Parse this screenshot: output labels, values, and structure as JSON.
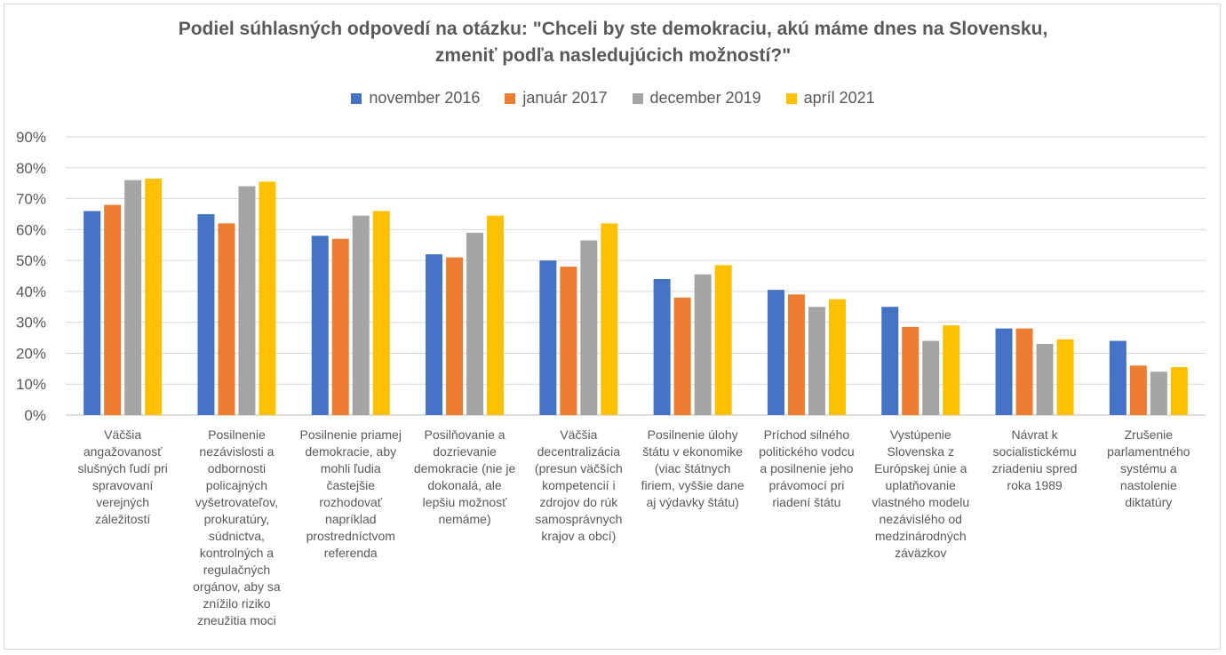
{
  "chart_data": {
    "type": "bar",
    "title_line1": "Podiel súhlasných odpovedí na otázku: \"Chceli by ste demokraciu, akú máme dnes na Slovensku,",
    "title_line2": "zmeniť podľa nasledujúcich možností?\"",
    "ylim": [
      0,
      90
    ],
    "yticks": [
      "0%",
      "10%",
      "20%",
      "30%",
      "40%",
      "50%",
      "60%",
      "70%",
      "80%",
      "90%"
    ],
    "legend_position": "top",
    "grid": true,
    "categories": [
      [
        "Väčšia",
        "angažovanosť",
        "slušných ľudí pri",
        "spravovaní",
        "verejných",
        "záležitostí"
      ],
      [
        "Posilnenie",
        "nezávislosti a",
        "odbornosti",
        "policajných",
        "vyšetrovateľov,",
        "prokuratúry,",
        "súdnictva,",
        "kontrolných a",
        "regulačných",
        "orgánov, aby sa",
        "znížilo riziko",
        "zneužitia moci"
      ],
      [
        "Posilnenie priamej",
        "demokracie, aby",
        "mohli ľudia",
        "častejšie",
        "rozhodovať",
        "napríklad",
        "prostredníctvom",
        "referenda"
      ],
      [
        "Posilňovanie a",
        "dozrievanie",
        "demokracie (nie je",
        "dokonalá, ale",
        "lepšiu možnosť",
        "nemáme)"
      ],
      [
        "Väčšia",
        "decentralizácia",
        "(presun väčších",
        "kompetencií i",
        "zdrojov do rúk",
        "samosprávnych",
        "krajov a obcí)"
      ],
      [
        "Posilnenie úlohy",
        "štátu v ekonomike",
        "(viac štátnych",
        "firiem, vyššie dane",
        "aj výdavky štátu)"
      ],
      [
        "Príchod silného",
        "politického vodcu",
        "a posilnenie jeho",
        "právomocí pri",
        "riadení štátu"
      ],
      [
        "Vystúpenie",
        "Slovenska z",
        "Európskej únie a",
        "uplatňovanie",
        "vlastného modelu",
        "nezávislého od",
        "medzinárodných",
        "záväzkov"
      ],
      [
        "Návrat k",
        "socialistickému",
        "zriadeniu spred",
        "roka 1989"
      ],
      [
        "Zrušenie",
        "parlamentného",
        "systému a",
        "nastolenie",
        "diktatúry"
      ]
    ],
    "series": [
      {
        "name": "november 2016",
        "color": "#4472c4",
        "values": [
          66,
          65,
          58,
          52,
          50,
          44,
          40.5,
          35,
          28,
          24
        ]
      },
      {
        "name": "január 2017",
        "color": "#ed7d31",
        "values": [
          68,
          62,
          57,
          51,
          48,
          38,
          39,
          28.5,
          28,
          16
        ]
      },
      {
        "name": "december 2019",
        "color": "#a5a5a5",
        "values": [
          76,
          74,
          64.5,
          59,
          56.5,
          45.5,
          35,
          24,
          23,
          14
        ]
      },
      {
        "name": "apríl 2021",
        "color": "#ffc000",
        "values": [
          76.5,
          75.5,
          66,
          64.5,
          62,
          48.5,
          37.5,
          29,
          24.5,
          15.5
        ]
      }
    ]
  }
}
